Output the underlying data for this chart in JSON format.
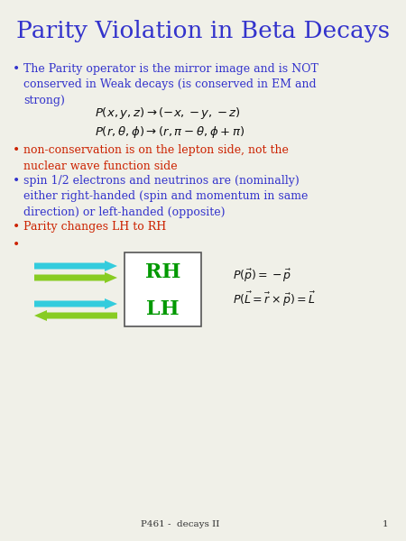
{
  "title": "Parity Violation in Beta Decays",
  "title_color": "#3333cc",
  "title_fontsize": 19,
  "bg_color": "#f0f0e8",
  "bullet_color_blue": "#3333cc",
  "bullet_color_red": "#cc2200",
  "bullet1_text": "The Parity operator is the mirror image and is NOT\nconserved in Weak decays (is conserved in EM and\nstrong)",
  "eq1": "$P(x, y, z) \\rightarrow (-x,-y,-z)$",
  "eq2": "$P(r, \\theta, \\phi) \\rightarrow (r, \\pi-\\theta, \\phi+\\pi)$",
  "bullet2_text": "non-conservation is on the lepton side, not the\nnuclear wave function side",
  "bullet3_text": "spin 1/2 electrons and neutrinos are (nominally)\neither right-handed (spin and momentum in same\ndirection) or left-handed (opposite)",
  "bullet4_text": "Parity changes LH to RH",
  "rh_label": "RH",
  "lh_label": "LH",
  "rh_lh_color": "#009900",
  "arrow_cyan": "#33ccdd",
  "arrow_green": "#88cc22",
  "eq_p": "$P(\\vec{p}) = -\\vec{p}$",
  "eq_L": "$P(\\vec{L} = \\vec{r} \\times \\vec{p}) = \\vec{L}$",
  "footer_text": "P461 -  decays II",
  "footer_num": "1",
  "box_color": "#555555"
}
